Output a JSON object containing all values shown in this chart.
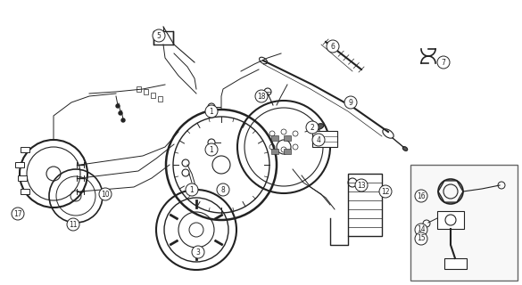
{
  "bg_color": "#ffffff",
  "line_color": "#222222",
  "fig_width": 5.85,
  "fig_height": 3.2,
  "dpi": 100,
  "labels": [
    [
      "1",
      237,
      125
    ],
    [
      "1",
      237,
      168
    ],
    [
      "1",
      215,
      213
    ],
    [
      "2",
      350,
      143
    ],
    [
      "3",
      222,
      283
    ],
    [
      "4",
      357,
      157
    ],
    [
      "5",
      178,
      40
    ],
    [
      "6",
      373,
      52
    ],
    [
      "7",
      497,
      70
    ],
    [
      "8",
      250,
      213
    ],
    [
      "9",
      393,
      115
    ],
    [
      "10",
      118,
      218
    ],
    [
      "11",
      82,
      252
    ],
    [
      "12",
      432,
      215
    ],
    [
      "13",
      405,
      208
    ],
    [
      "14",
      472,
      258
    ],
    [
      "15",
      472,
      268
    ],
    [
      "16",
      472,
      220
    ],
    [
      "17",
      20,
      240
    ],
    [
      "18",
      293,
      108
    ]
  ]
}
